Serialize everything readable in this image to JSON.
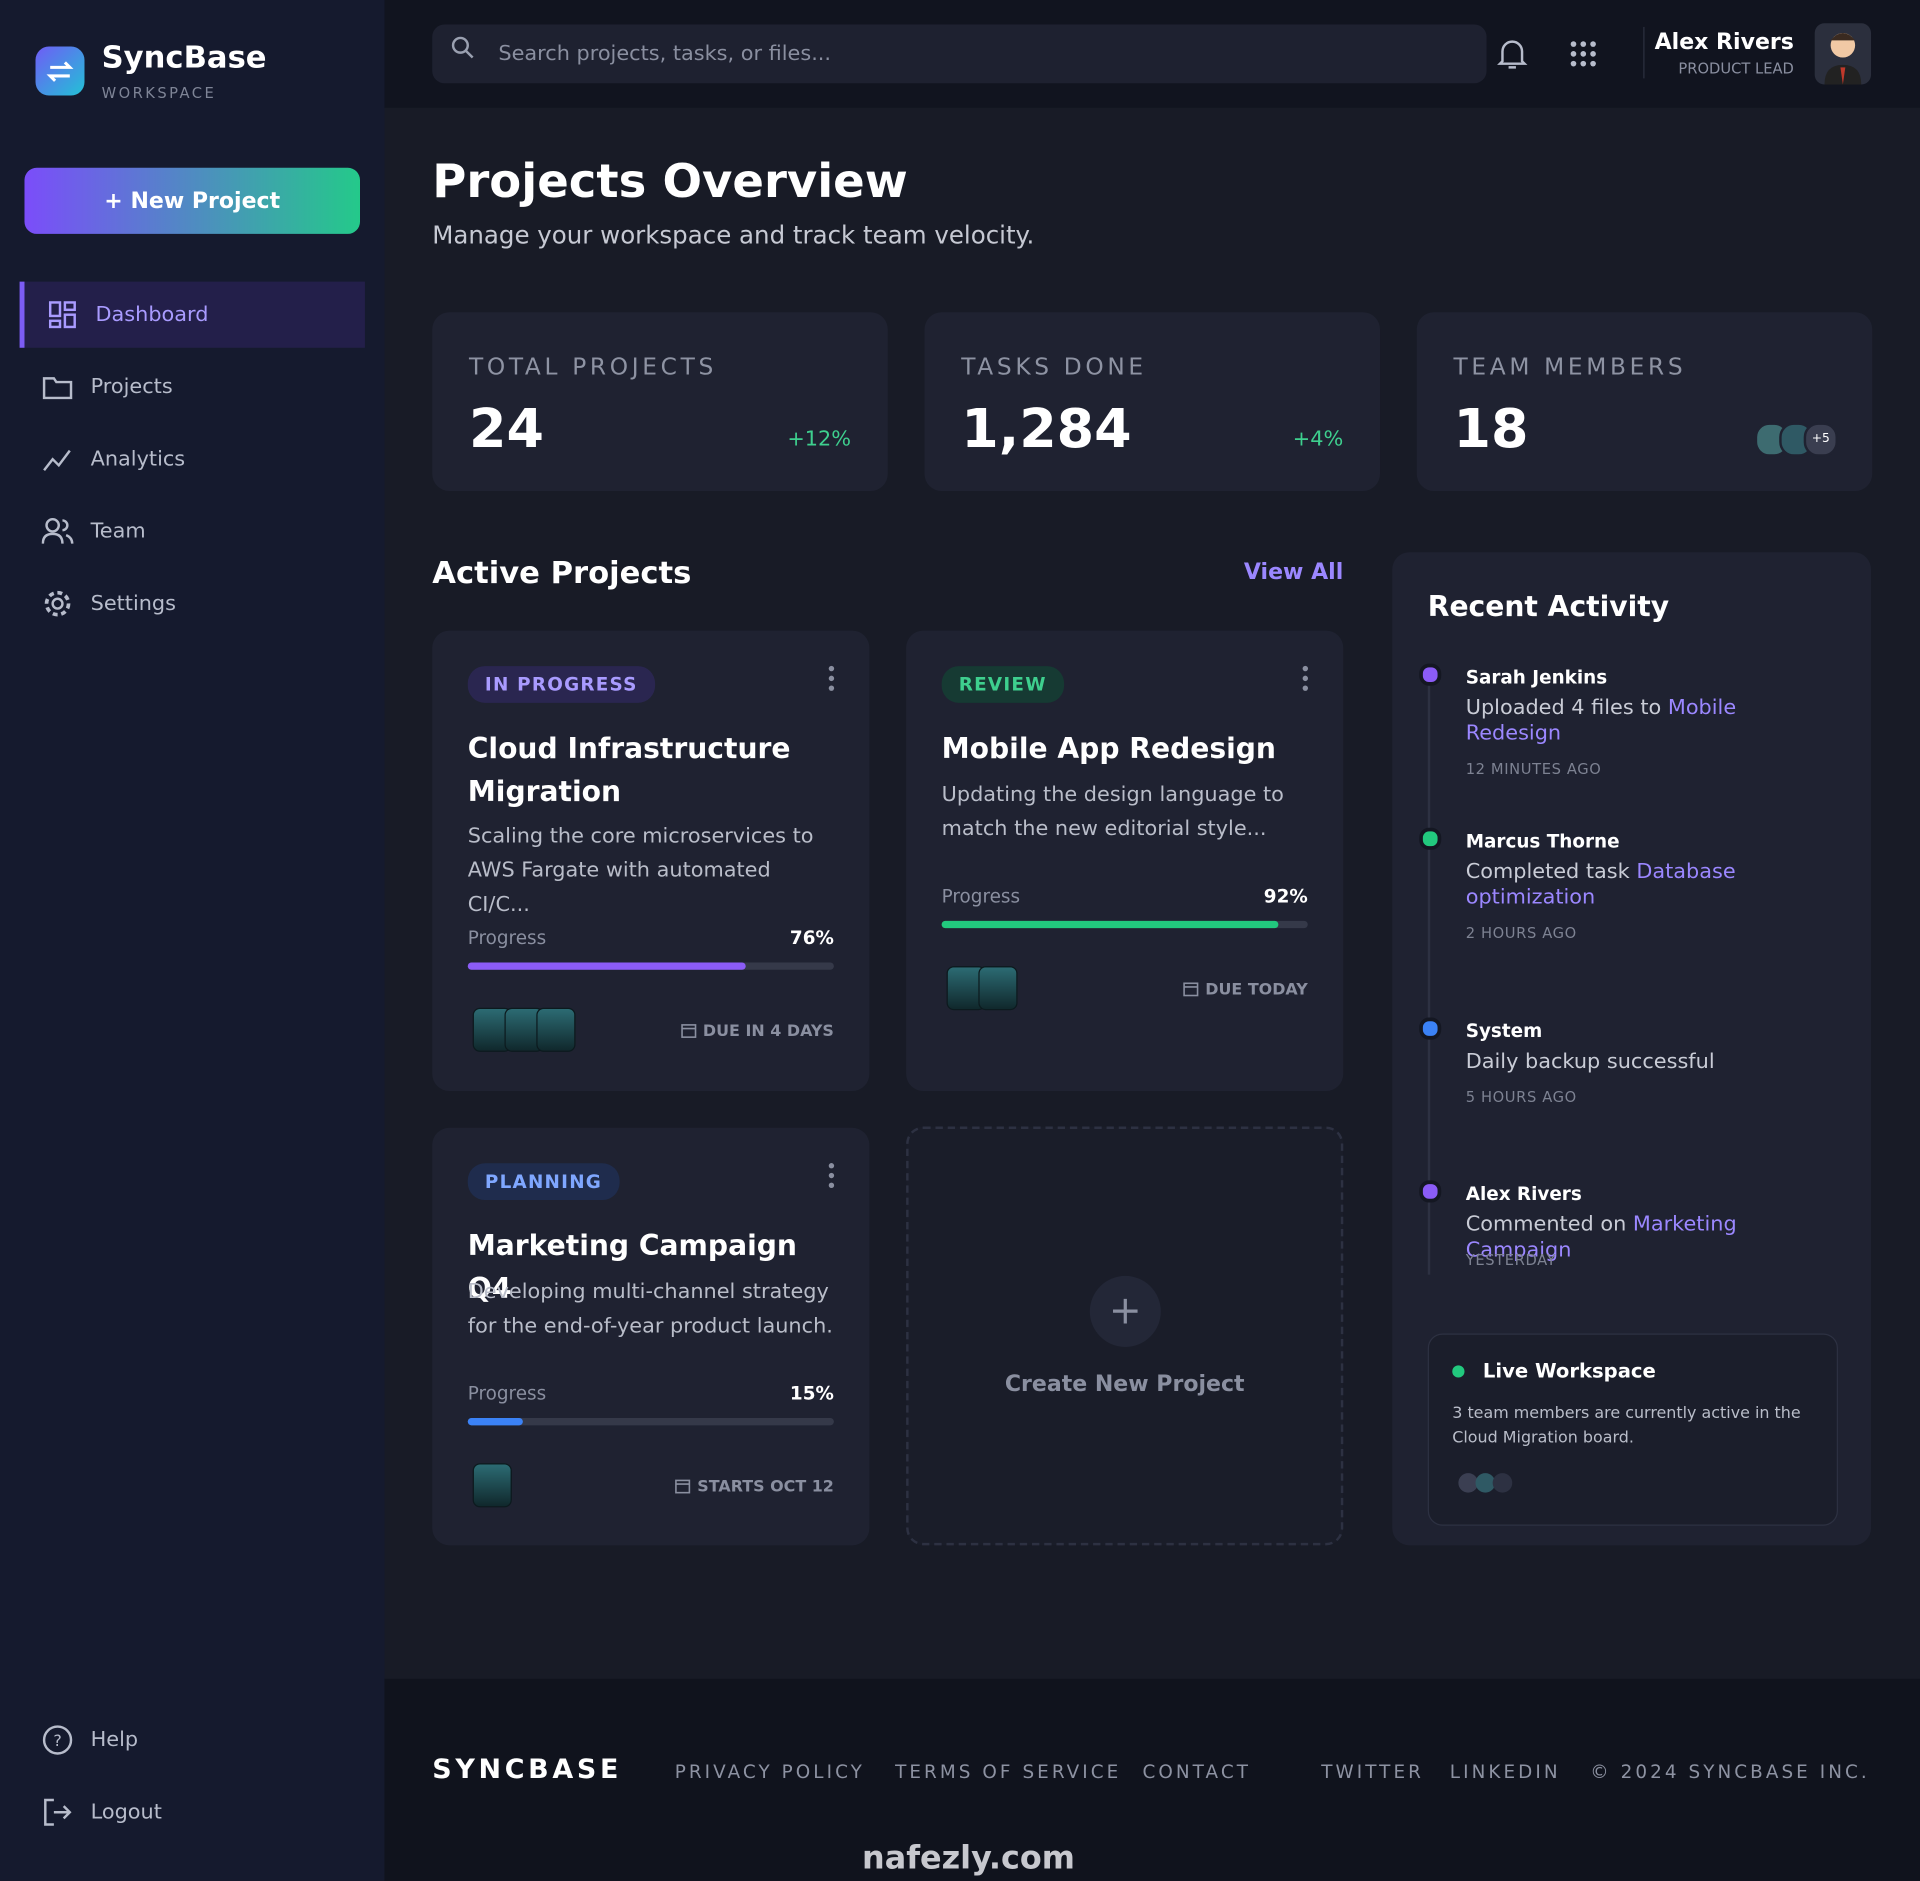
{
  "sidebar": {
    "brand": "SyncBase",
    "brand_sub": "WORKSPACE",
    "new_button": "+ New Project",
    "nav": [
      "Dashboard",
      "Projects",
      "Analytics",
      "Team",
      "Settings"
    ],
    "bottom": [
      "Help",
      "Logout"
    ]
  },
  "header": {
    "search_placeholder": "Search projects, tasks, or files...",
    "user_name": "Alex Rivers",
    "user_role": "PRODUCT LEAD"
  },
  "page": {
    "title": "Projects Overview",
    "subtitle": "Manage your workspace and track team velocity."
  },
  "stats": [
    {
      "label": "TOTAL PROJECTS",
      "value": 24,
      "trend": "+12%"
    },
    {
      "label": "TASKS DONE",
      "value": {
        "value": 1284,
        "label": "1,284"
      },
      "trend": "+4%"
    },
    {
      "label": "TEAM MEMBERS",
      "value": 18,
      "extra": "+5"
    }
  ],
  "active": {
    "title": "Active Projects",
    "view_all": "View All",
    "progress_label": "Progress",
    "projects": [
      {
        "status": "IN PROGRESS",
        "title": "Cloud Infrastructure Migration",
        "desc": "Scaling the core microservices to AWS Fargate with automated CI/C...",
        "progress": {
          "value": 76,
          "label": "76%"
        },
        "due": "DUE IN 4 DAYS"
      },
      {
        "status": "REVIEW",
        "title": "Mobile App Redesign",
        "desc": "Updating the design language to match the new editorial style...",
        "progress": {
          "value": 92,
          "label": "92%"
        },
        "due": "DUE TODAY"
      },
      {
        "status": "PLANNING",
        "title": "Marketing Campaign Q4",
        "desc": "Developing multi-channel strategy for the end-of-year product launch.",
        "progress": {
          "value": 15,
          "label": "15%"
        },
        "due": "STARTS OCT 12"
      }
    ],
    "create": "Create New Project"
  },
  "activity": {
    "title": "Recent Activity",
    "items": [
      {
        "name": "Sarah Jenkins",
        "text": "Uploaded 4 files to",
        "link": "Mobile Redesign",
        "time": "12 MINUTES AGO"
      },
      {
        "name": "Marcus Thorne",
        "text": "Completed task",
        "link": "Database optimization",
        "time": "2 HOURS AGO"
      },
      {
        "name": "System",
        "text": "Daily backup successful",
        "time": "5 HOURS AGO"
      },
      {
        "name": "Alex Rivers",
        "text": "Commented on",
        "link": "Marketing Campaign",
        "time": "YESTERDAY"
      }
    ],
    "live_title": "Live Workspace",
    "live_text": "3 team members are currently active in the Cloud Migration board."
  },
  "footer": {
    "brand": "SYNCBASE",
    "links": [
      "PRIVACY POLICY",
      "TERMS OF SERVICE",
      "CONTACT",
      "TWITTER",
      "LINKEDIN"
    ],
    "copyright": "© 2024 SYNCBASE INC."
  },
  "watermark": "nafezly.com"
}
